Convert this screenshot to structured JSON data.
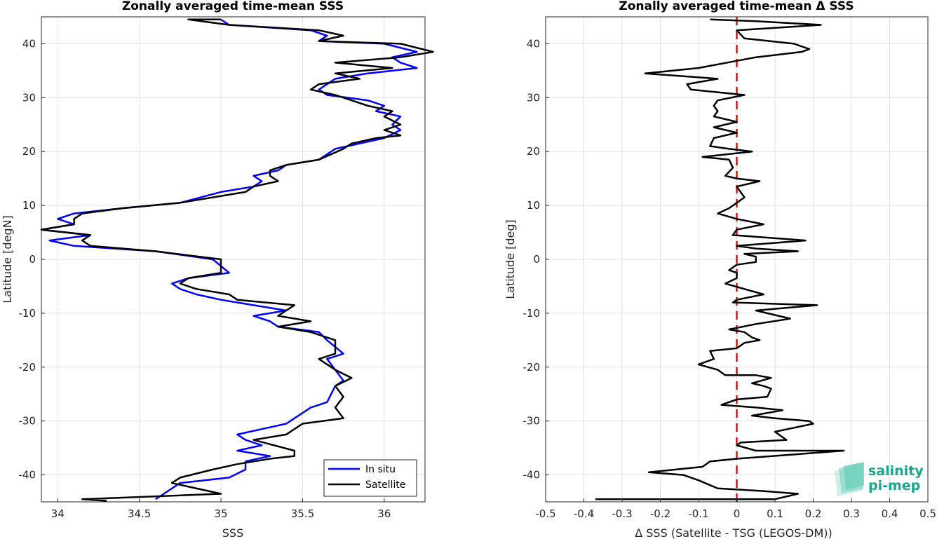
{
  "chart_data": [
    {
      "type": "line",
      "title": "Zonally averaged time-mean SSS",
      "xlabel": "SSS",
      "ylabel": "Latitude [degN]",
      "xlim": [
        33.9,
        36.25
      ],
      "ylim": [
        -45,
        45
      ],
      "xticks": [
        34,
        34.5,
        35,
        35.5,
        36
      ],
      "yticks": [
        -40,
        -30,
        -20,
        -10,
        0,
        10,
        20,
        30,
        40
      ],
      "grid": true,
      "legend_position": "bottom-right",
      "series": [
        {
          "name": "In situ",
          "color": "#0000ff",
          "points": [
            [
              35.0,
              44.5
            ],
            [
              35.05,
              43.5
            ],
            [
              35.55,
              42.5
            ],
            [
              35.65,
              41.5
            ],
            [
              35.6,
              40.5
            ],
            [
              36.0,
              40.0
            ],
            [
              36.2,
              38.5
            ],
            [
              36.05,
              37.5
            ],
            [
              36.1,
              36.5
            ],
            [
              36.2,
              35.5
            ],
            [
              35.9,
              34.5
            ],
            [
              35.7,
              33.5
            ],
            [
              35.65,
              32.5
            ],
            [
              35.6,
              31.5
            ],
            [
              35.65,
              30.5
            ],
            [
              35.9,
              29.5
            ],
            [
              36.0,
              28.5
            ],
            [
              35.95,
              27.5
            ],
            [
              36.1,
              26.5
            ],
            [
              36.05,
              25.0
            ],
            [
              36.1,
              24.0
            ],
            [
              36.0,
              22.5
            ],
            [
              35.85,
              21.5
            ],
            [
              35.7,
              20.5
            ],
            [
              35.6,
              18.5
            ],
            [
              35.4,
              17.5
            ],
            [
              35.35,
              16.5
            ],
            [
              35.2,
              15.5
            ],
            [
              35.25,
              14.5
            ],
            [
              35.2,
              13.5
            ],
            [
              35.0,
              12.5
            ],
            [
              34.75,
              10.5
            ],
            [
              34.4,
              9.5
            ],
            [
              34.1,
              8.5
            ],
            [
              34.0,
              7.5
            ],
            [
              34.1,
              6.5
            ],
            [
              33.9,
              5.5
            ],
            [
              34.2,
              4.5
            ],
            [
              33.95,
              3.5
            ],
            [
              34.1,
              2.5
            ],
            [
              34.6,
              1.5
            ],
            [
              34.95,
              0.0
            ],
            [
              35.05,
              -2.5
            ],
            [
              34.8,
              -3.5
            ],
            [
              34.7,
              -4.5
            ],
            [
              34.75,
              -5.5
            ],
            [
              34.85,
              -6.5
            ],
            [
              35.0,
              -7.5
            ],
            [
              35.2,
              -8.5
            ],
            [
              35.4,
              -9.5
            ],
            [
              35.2,
              -10.5
            ],
            [
              35.3,
              -11.5
            ],
            [
              35.35,
              -12.5
            ],
            [
              35.6,
              -13.5
            ],
            [
              35.65,
              -15.0
            ],
            [
              35.75,
              -17.5
            ],
            [
              35.65,
              -18.5
            ],
            [
              35.7,
              -20.5
            ],
            [
              35.75,
              -22.5
            ],
            [
              35.7,
              -23.5
            ],
            [
              35.65,
              -26.5
            ],
            [
              35.55,
              -27.5
            ],
            [
              35.45,
              -29.5
            ],
            [
              35.4,
              -30.5
            ],
            [
              35.1,
              -32.5
            ],
            [
              35.15,
              -33.5
            ],
            [
              35.25,
              -34.5
            ],
            [
              35.1,
              -35.5
            ],
            [
              35.3,
              -36.5
            ],
            [
              35.15,
              -37.5
            ],
            [
              35.15,
              -39.0
            ],
            [
              35.05,
              -40.5
            ],
            [
              34.75,
              -41.5
            ],
            [
              34.7,
              -42.5
            ],
            [
              34.65,
              -43.5
            ],
            [
              34.6,
              -44.5
            ]
          ]
        },
        {
          "name": "Satellite",
          "color": "#000000",
          "points": [
            [
              35.0,
              44.5
            ],
            [
              34.8,
              44.5
            ],
            [
              35.05,
              43.5
            ],
            [
              35.6,
              42.5
            ],
            [
              35.75,
              41.5
            ],
            [
              35.6,
              40.5
            ],
            [
              36.1,
              40.0
            ],
            [
              36.3,
              38.5
            ],
            [
              36.1,
              37.5
            ],
            [
              35.7,
              36.5
            ],
            [
              36.05,
              35.5
            ],
            [
              35.7,
              34.5
            ],
            [
              35.85,
              33.5
            ],
            [
              35.6,
              32.5
            ],
            [
              35.55,
              31.5
            ],
            [
              35.7,
              30.5
            ],
            [
              35.8,
              29.5
            ],
            [
              35.9,
              28.5
            ],
            [
              36.05,
              27.5
            ],
            [
              36.0,
              26.5
            ],
            [
              36.1,
              25.0
            ],
            [
              36.0,
              24.0
            ],
            [
              36.1,
              23.0
            ],
            [
              35.95,
              22.5
            ],
            [
              35.8,
              21.5
            ],
            [
              35.75,
              20.5
            ],
            [
              35.6,
              18.5
            ],
            [
              35.4,
              17.5
            ],
            [
              35.3,
              16.5
            ],
            [
              35.3,
              15.5
            ],
            [
              35.35,
              14.5
            ],
            [
              35.2,
              13.5
            ],
            [
              35.15,
              12.5
            ],
            [
              34.75,
              10.5
            ],
            [
              34.4,
              9.5
            ],
            [
              34.15,
              8.5
            ],
            [
              34.1,
              7.5
            ],
            [
              34.1,
              6.5
            ],
            [
              33.9,
              5.5
            ],
            [
              34.2,
              4.5
            ],
            [
              34.15,
              3.5
            ],
            [
              34.2,
              2.5
            ],
            [
              34.6,
              1.5
            ],
            [
              35.0,
              0.0
            ],
            [
              35.0,
              -2.5
            ],
            [
              34.8,
              -3.5
            ],
            [
              34.75,
              -4.5
            ],
            [
              34.85,
              -5.5
            ],
            [
              35.05,
              -6.5
            ],
            [
              35.1,
              -7.5
            ],
            [
              35.45,
              -8.5
            ],
            [
              35.4,
              -9.5
            ],
            [
              35.35,
              -10.5
            ],
            [
              35.55,
              -11.5
            ],
            [
              35.35,
              -12.5
            ],
            [
              35.55,
              -13.5
            ],
            [
              35.7,
              -15.0
            ],
            [
              35.7,
              -17.5
            ],
            [
              35.6,
              -18.5
            ],
            [
              35.7,
              -20.5
            ],
            [
              35.8,
              -22.0
            ],
            [
              35.7,
              -23.5
            ],
            [
              35.75,
              -25.5
            ],
            [
              35.7,
              -27.5
            ],
            [
              35.75,
              -29.5
            ],
            [
              35.5,
              -30.5
            ],
            [
              35.4,
              -32.5
            ],
            [
              35.2,
              -33.5
            ],
            [
              35.45,
              -35.5
            ],
            [
              35.45,
              -36.5
            ],
            [
              35.3,
              -37.0
            ],
            [
              35.1,
              -38.0
            ],
            [
              34.95,
              -39.0
            ],
            [
              34.75,
              -40.5
            ],
            [
              34.7,
              -41.5
            ],
            [
              35.0,
              -43.5
            ],
            [
              34.15,
              -44.5
            ],
            [
              34.3,
              -44.8
            ]
          ]
        }
      ]
    },
    {
      "type": "line",
      "title": "Zonally averaged time-mean Δ SSS",
      "xlabel": "Δ SSS (Satellite - TSG (LEGOS-DM))",
      "ylabel": "Latitude [deg]",
      "xlim": [
        -0.5,
        0.5
      ],
      "ylim": [
        -45,
        45
      ],
      "xticks": [
        -0.5,
        -0.4,
        -0.3,
        -0.2,
        -0.1,
        0,
        0.1,
        0.2,
        0.3,
        0.4,
        0.5
      ],
      "yticks": [
        -40,
        -30,
        -20,
        -10,
        0,
        10,
        20,
        30,
        40
      ],
      "grid": true,
      "reference_line": {
        "x": 0,
        "color": "#ff0000",
        "style": "dashed"
      },
      "series": [
        {
          "color": "#000000",
          "points": [
            [
              -0.07,
              44.5
            ],
            [
              0.05,
              44.2
            ],
            [
              0.22,
              43.5
            ],
            [
              0.0,
              42.5
            ],
            [
              0.02,
              41.0
            ],
            [
              0.15,
              40.0
            ],
            [
              0.19,
              39.0
            ],
            [
              0.17,
              38.5
            ],
            [
              0.05,
              37.5
            ],
            [
              -0.1,
              35.5
            ],
            [
              -0.24,
              34.5
            ],
            [
              -0.05,
              33.5
            ],
            [
              -0.13,
              32.5
            ],
            [
              -0.12,
              31.5
            ],
            [
              -0.05,
              31.0
            ],
            [
              0.02,
              30.5
            ],
            [
              -0.05,
              29.5
            ],
            [
              -0.06,
              28.5
            ],
            [
              -0.05,
              27.5
            ],
            [
              -0.06,
              26.5
            ],
            [
              0.0,
              25.5
            ],
            [
              -0.06,
              24.5
            ],
            [
              0.0,
              23.5
            ],
            [
              -0.06,
              22.5
            ],
            [
              -0.07,
              21.0
            ],
            [
              -0.02,
              20.5
            ],
            [
              0.04,
              20.0
            ],
            [
              -0.09,
              19.0
            ],
            [
              -0.02,
              18.5
            ],
            [
              -0.01,
              17.0
            ],
            [
              -0.03,
              15.5
            ],
            [
              0.0,
              15.0
            ],
            [
              0.06,
              14.5
            ],
            [
              0.0,
              13.5
            ],
            [
              0.02,
              11.5
            ],
            [
              -0.02,
              9.5
            ],
            [
              -0.05,
              8.5
            ],
            [
              0.0,
              7.5
            ],
            [
              0.07,
              6.5
            ],
            [
              0.0,
              5.5
            ],
            [
              -0.01,
              4.5
            ],
            [
              0.18,
              3.5
            ],
            [
              0.0,
              2.5
            ],
            [
              0.05,
              2.0
            ],
            [
              0.16,
              1.5
            ],
            [
              0.02,
              1.0
            ],
            [
              0.05,
              0.5
            ],
            [
              0.05,
              -0.5
            ],
            [
              0.0,
              -1.0
            ],
            [
              -0.02,
              -2.0
            ],
            [
              0.0,
              -2.5
            ],
            [
              0.0,
              -3.5
            ],
            [
              -0.03,
              -4.5
            ],
            [
              0.02,
              -5.5
            ],
            [
              0.07,
              -6.5
            ],
            [
              0.0,
              -7.5
            ],
            [
              -0.01,
              -8.0
            ],
            [
              0.21,
              -8.5
            ],
            [
              0.05,
              -9.5
            ],
            [
              0.14,
              -11.0
            ],
            [
              0.05,
              -12.0
            ],
            [
              -0.02,
              -13.0
            ],
            [
              0.02,
              -13.5
            ],
            [
              0.04,
              -14.5
            ],
            [
              0.06,
              -15.0
            ],
            [
              0.02,
              -15.5
            ],
            [
              0.0,
              -16.5
            ],
            [
              -0.07,
              -17.0
            ],
            [
              -0.06,
              -18.5
            ],
            [
              -0.1,
              -19.5
            ],
            [
              -0.05,
              -20.5
            ],
            [
              -0.03,
              -21.5
            ],
            [
              0.05,
              -21.5
            ],
            [
              0.09,
              -22.0
            ],
            [
              0.04,
              -23.0
            ],
            [
              0.07,
              -23.5
            ],
            [
              0.09,
              -24.0
            ],
            [
              0.08,
              -25.5
            ],
            [
              0.0,
              -26.0
            ],
            [
              -0.04,
              -27.0
            ],
            [
              0.05,
              -27.5
            ],
            [
              0.12,
              -28.0
            ],
            [
              0.04,
              -29.0
            ],
            [
              0.1,
              -29.5
            ],
            [
              0.19,
              -30.0
            ],
            [
              0.2,
              -30.5
            ],
            [
              0.1,
              -32.0
            ],
            [
              0.13,
              -33.5
            ],
            [
              0.01,
              -34.0
            ],
            [
              0.0,
              -34.5
            ],
            [
              0.05,
              -35.5
            ],
            [
              0.28,
              -35.5
            ],
            [
              0.0,
              -37.0
            ],
            [
              -0.07,
              -37.5
            ],
            [
              -0.09,
              -38.5
            ],
            [
              -0.23,
              -39.5
            ],
            [
              -0.14,
              -40.0
            ],
            [
              -0.12,
              -40.5
            ],
            [
              -0.1,
              -41.0
            ],
            [
              -0.05,
              -42.5
            ],
            [
              0.07,
              -43.0
            ],
            [
              0.16,
              -43.5
            ],
            [
              0.1,
              -44.5
            ],
            [
              -0.37,
              -44.5
            ]
          ]
        }
      ]
    }
  ],
  "logo": {
    "line1": "salinity",
    "line2": "pi-mep",
    "color": "#1aa68c",
    "shape_color": "#6fd0bd"
  }
}
